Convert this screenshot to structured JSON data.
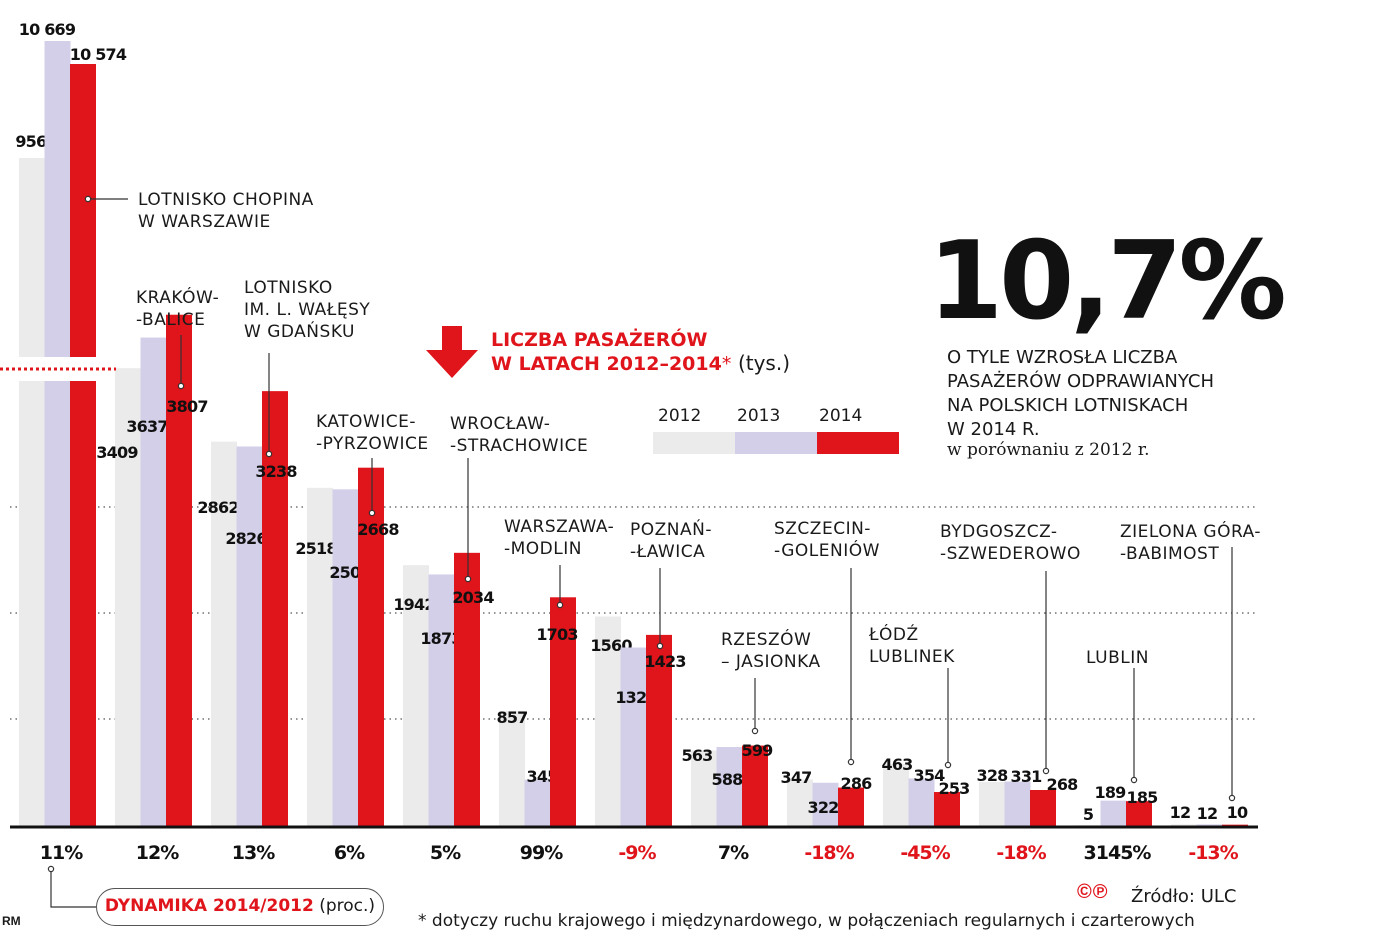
{
  "headline": {
    "line1": "LICZBA PASAŻERÓW",
    "line2": "W LATACH 2012–2014",
    "asterisk": "*",
    "unit": "(tys.)"
  },
  "highlight": {
    "value": "10,7%",
    "lines": [
      "O TYLE WZROSŁA LICZBA",
      "PASAŻERÓW ODPRAWIANYCH",
      "NA POLSKICH LOTNISKACH",
      "W 2014 R."
    ],
    "sub": "w porównaniu z 2012 r."
  },
  "legend": {
    "years": [
      "2012",
      "2013",
      "2014"
    ],
    "placement": "top-right"
  },
  "colors": {
    "y2012": "#ebebeb",
    "y2013": "#d4cfe9",
    "y2014": "#e0141b",
    "accent": "#e0141b",
    "text": "#1a1a1a"
  },
  "dynamics_label": {
    "bold": "DYNAMIKA 2014/2012",
    "rest": "(proc.)"
  },
  "source": "Źródło: ULC",
  "copyright_mark": "©℗",
  "footnote": "* dotyczy ruchu krajowego i międzynardowego, w połączeniach regularnych i czarterowych",
  "credit": "RM",
  "chart_data": {
    "type": "bar",
    "unit": "(tys.)",
    "series_names": [
      "2012",
      "2013",
      "2014"
    ],
    "airports": [
      {
        "name": [
          "LOTNISKO CHOPINA",
          "W WARSZAWIE"
        ],
        "values": [
          9567,
          10669,
          10574
        ],
        "labels": [
          "9567",
          "10 669",
          "10 574"
        ],
        "dynamics": "11%",
        "negative": false
      },
      {
        "name": [
          "KRAKÓW-",
          "-BALICE"
        ],
        "values": [
          3409,
          3637,
          3807
        ],
        "labels": [
          "3409",
          "3637",
          "3807"
        ],
        "dynamics": "12%",
        "negative": false
      },
      {
        "name": [
          "LOTNISKO",
          "IM. L. WAŁĘSY",
          "W GDAŃSKU"
        ],
        "values": [
          2862,
          2826,
          3238
        ],
        "labels": [
          "2862",
          "2826",
          "3238"
        ],
        "dynamics": "13%",
        "negative": false
      },
      {
        "name": [
          "KATOWICE-",
          "-PYRZOWICE"
        ],
        "values": [
          2518,
          2507,
          2668
        ],
        "labels": [
          "2518",
          "2507",
          "2668"
        ],
        "dynamics": "6%",
        "negative": false
      },
      {
        "name": [
          "WROCŁAW-",
          "-STRACHOWICE"
        ],
        "values": [
          1942,
          1873,
          2034
        ],
        "labels": [
          "1942",
          "1873",
          "2034"
        ],
        "dynamics": "5%",
        "negative": false
      },
      {
        "name": [
          "WARSZAWA-",
          "-MODLIN"
        ],
        "values": [
          857,
          345,
          1703
        ],
        "labels": [
          "857",
          "345",
          "1703"
        ],
        "dynamics": "99%",
        "negative": false
      },
      {
        "name": [
          "POZNAŃ-",
          "-ŁAWICA"
        ],
        "values": [
          1560,
          1329,
          1423
        ],
        "labels": [
          "1560",
          "1329",
          "1423"
        ],
        "dynamics": "-9%",
        "negative": true
      },
      {
        "name": [
          "RZESZÓW",
          "– JASIONKA"
        ],
        "values": [
          563,
          588,
          599
        ],
        "labels": [
          "563",
          "588",
          "599"
        ],
        "dynamics": "7%",
        "negative": false
      },
      {
        "name": [
          "SZCZECIN-",
          "-GOLENIÓW"
        ],
        "values": [
          347,
          322,
          286
        ],
        "labels": [
          "347",
          "322",
          "286"
        ],
        "dynamics": "-18%",
        "negative": true
      },
      {
        "name": [
          "ŁÓDŹ",
          "LUBLINEK"
        ],
        "values": [
          463,
          354,
          253
        ],
        "labels": [
          "463",
          "354",
          "253"
        ],
        "dynamics": "-45%",
        "negative": true
      },
      {
        "name": [
          "BYDGOSZCZ-",
          "-SZWEDEROWO"
        ],
        "values": [
          328,
          331,
          268
        ],
        "labels": [
          "328",
          "331",
          "268"
        ],
        "dynamics": "-18%",
        "negative": true
      },
      {
        "name": [
          "LUBLIN"
        ],
        "values": [
          5,
          189,
          185
        ],
        "labels": [
          "5",
          "189",
          "185"
        ],
        "dynamics": "3145%",
        "negative": false
      },
      {
        "name": [
          "ZIELONA GÓRA-",
          "-BABIMOST"
        ],
        "values": [
          12,
          12,
          10
        ],
        "labels": [
          "12",
          "12",
          "10"
        ],
        "dynamics": "-13%",
        "negative": true
      }
    ],
    "axis_break_after_first_group": true,
    "grid": "dotted"
  }
}
